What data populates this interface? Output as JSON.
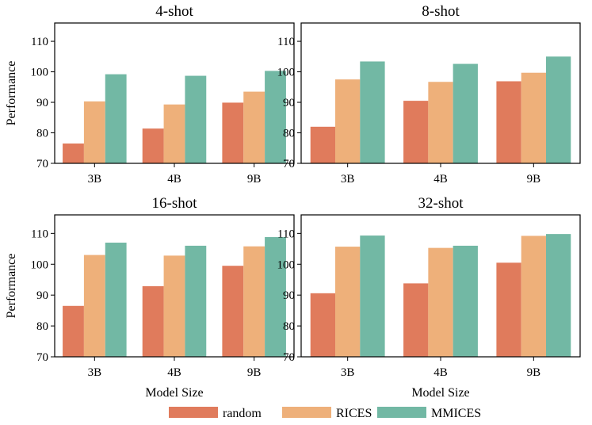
{
  "chart_data": [
    {
      "type": "bar",
      "title": "4-shot",
      "categories": [
        "3B",
        "4B",
        "9B"
      ],
      "series": [
        {
          "name": "random",
          "values": [
            76.5,
            81.4,
            89.9
          ]
        },
        {
          "name": "RICES",
          "values": [
            90.3,
            89.3,
            93.5
          ]
        },
        {
          "name": "MMICES",
          "values": [
            99.2,
            98.7,
            100.3
          ]
        }
      ],
      "ylabel": "Performance",
      "xlabel": "",
      "ylim": [
        70,
        116
      ],
      "yticks": [
        70,
        80,
        90,
        100,
        110
      ]
    },
    {
      "type": "bar",
      "title": "8-shot",
      "categories": [
        "3B",
        "4B",
        "9B"
      ],
      "series": [
        {
          "name": "random",
          "values": [
            82.0,
            90.5,
            96.9
          ]
        },
        {
          "name": "RICES",
          "values": [
            97.5,
            96.7,
            99.7
          ]
        },
        {
          "name": "MMICES",
          "values": [
            103.4,
            102.6,
            105.0
          ]
        }
      ],
      "ylabel": "",
      "xlabel": "",
      "ylim": [
        70,
        116
      ],
      "yticks": [
        70,
        80,
        90,
        100,
        110
      ]
    },
    {
      "type": "bar",
      "title": "16-shot",
      "categories": [
        "3B",
        "4B",
        "9B"
      ],
      "series": [
        {
          "name": "random",
          "values": [
            86.5,
            92.9,
            99.5
          ]
        },
        {
          "name": "RICES",
          "values": [
            103.0,
            102.8,
            105.8
          ]
        },
        {
          "name": "MMICES",
          "values": [
            107.0,
            106.0,
            108.8
          ]
        }
      ],
      "ylabel": "Performance",
      "xlabel": "Model Size",
      "ylim": [
        70,
        116
      ],
      "yticks": [
        70,
        80,
        90,
        100,
        110
      ]
    },
    {
      "type": "bar",
      "title": "32-shot",
      "categories": [
        "3B",
        "4B",
        "9B"
      ],
      "series": [
        {
          "name": "random",
          "values": [
            90.6,
            93.8,
            100.5
          ]
        },
        {
          "name": "RICES",
          "values": [
            105.7,
            105.3,
            109.2
          ]
        },
        {
          "name": "MMICES",
          "values": [
            109.3,
            106.0,
            109.8
          ]
        }
      ],
      "ylabel": "",
      "xlabel": "Model Size",
      "ylim": [
        70,
        116
      ],
      "yticks": [
        70,
        80,
        90,
        100,
        110
      ]
    }
  ],
  "legend": {
    "position": "bottom-center",
    "items": [
      {
        "name": "random",
        "color": "#E07B5C"
      },
      {
        "name": "RICES",
        "color": "#EEB07A"
      },
      {
        "name": "MMICES",
        "color": "#72B8A4"
      }
    ]
  }
}
